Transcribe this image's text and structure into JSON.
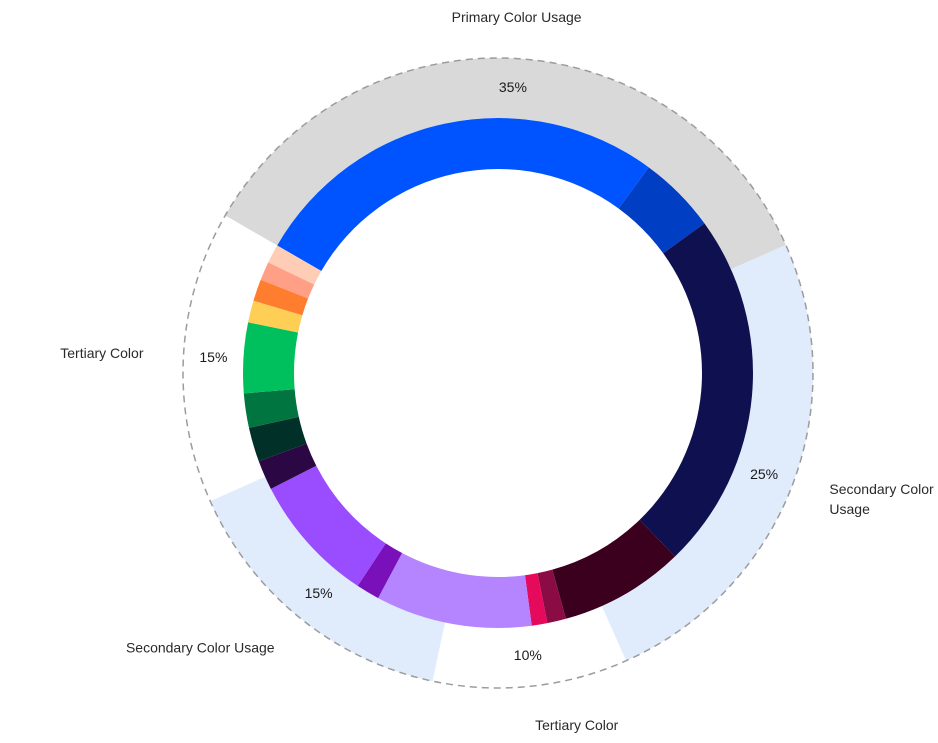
{
  "chart_data": {
    "type": "pie",
    "variant": "nested-donut",
    "title": "",
    "categories": [
      {
        "name": "Primary Color Usage",
        "percent_label": "35%",
        "value": 35,
        "band_color": "#d9d9d9"
      },
      {
        "name": "Secondary Color Usage",
        "percent_label": "25%",
        "value": 25,
        "band_color": "#e0ebfb"
      },
      {
        "name": "Tertiary Color",
        "percent_label": "10%",
        "value": 10,
        "band_color": "#ffffff"
      },
      {
        "name": "Secondary Color Usage",
        "percent_label": "15%",
        "value": 15,
        "band_color": "#e0ebfb"
      },
      {
        "name": "Tertiary Color",
        "percent_label": "15%",
        "value": 15,
        "band_color": "#ffffff"
      }
    ],
    "swatches": [
      {
        "color": "#0054ff",
        "value": 27.0
      },
      {
        "color": "#003ec4",
        "value": 5.0
      },
      {
        "color": "#0e1050",
        "value": 23.0
      },
      {
        "color": "#3a001e",
        "value": 8.0
      },
      {
        "color": "#8b0b44",
        "value": 1.2
      },
      {
        "color": "#e50a5c",
        "value": 1.0
      },
      {
        "color": "#b584ff",
        "value": 10.0
      },
      {
        "color": "#7a10b9",
        "value": 1.5
      },
      {
        "color": "#9a4cff",
        "value": 8.3
      },
      {
        "color": "#2b0744",
        "value": 1.9
      },
      {
        "color": "#003028",
        "value": 2.2
      },
      {
        "color": "#007540",
        "value": 2.2
      },
      {
        "color": "#00c05e",
        "value": 4.5
      },
      {
        "color": "#ffcf55",
        "value": 1.4
      },
      {
        "color": "#ff7d2f",
        "value": 1.4
      },
      {
        "color": "#ff9f86",
        "value": 1.2
      },
      {
        "color": "#ffcdb5",
        "value": 1.2
      }
    ],
    "start_category_boundary": "between Tertiary Color (15%) and Primary Color Usage",
    "outer_outline": "dashed",
    "legend": "none"
  }
}
